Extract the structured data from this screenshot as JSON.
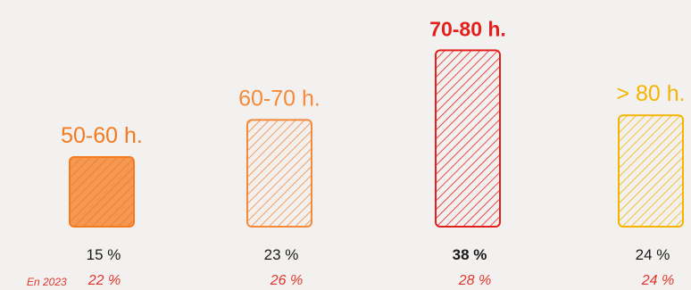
{
  "colors": {
    "background": "#f3f1ef",
    "previous_year_text": "#e0362a"
  },
  "chart_data": {
    "type": "bar",
    "title": "",
    "xlabel": "",
    "ylabel": "",
    "ylim": [
      0,
      40
    ],
    "categories": [
      "50-60 h.",
      "60-70 h.",
      "70-80 h.",
      "> 80 h."
    ],
    "value_labels": [
      "15 %",
      "23 %",
      "38 %",
      "24 %"
    ],
    "previous_year_caption": "En 2023",
    "previous_year_labels": [
      "22 %",
      "26 %",
      "28 %",
      "24 %"
    ],
    "highlight_index": 2,
    "series": [
      {
        "values": [
          15,
          23,
          38,
          24
        ]
      },
      {
        "values": [
          22,
          26,
          28,
          24
        ]
      }
    ],
    "bar_colors": [
      "#f47a1f",
      "#f58a3a",
      "#e3201b",
      "#f5b400"
    ],
    "bar_fill_styles": [
      "solid-hatched",
      "hatched",
      "hatched",
      "hatched"
    ]
  }
}
